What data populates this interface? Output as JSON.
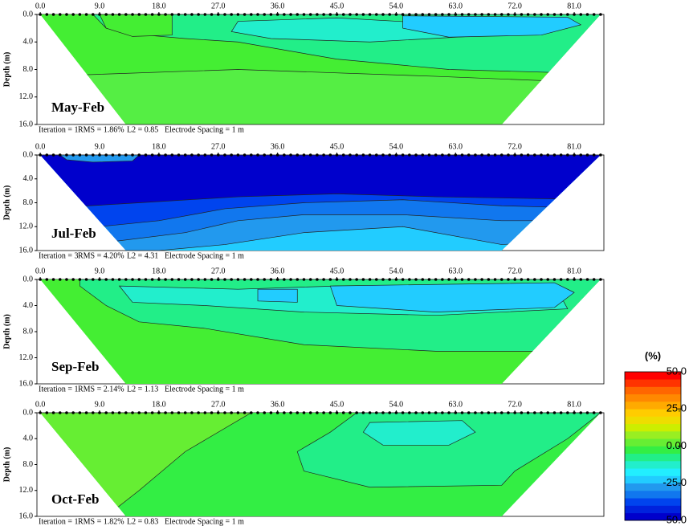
{
  "chart_data": [
    {
      "type": "contour",
      "title": "May-Feb",
      "ylabel": "Depth (m)",
      "xlim": [
        -0.5,
        85.5
      ],
      "ylim": [
        0,
        16
      ],
      "xticks": [
        {
          "value": 0,
          "label": "0.0"
        },
        {
          "value": 9,
          "label": "9.0"
        },
        {
          "value": 18,
          "label": "18.0"
        },
        {
          "value": 27,
          "label": "27.0"
        },
        {
          "value": 36,
          "label": "36.0"
        },
        {
          "value": 45,
          "label": "45.0"
        },
        {
          "value": 54,
          "label": "54.0"
        },
        {
          "value": 63,
          "label": "63.0"
        },
        {
          "value": 72,
          "label": "72.0"
        },
        {
          "value": 81,
          "label": "81.0"
        }
      ],
      "yticks": [
        {
          "value": 0,
          "label": "0.0"
        },
        {
          "value": 4,
          "label": "4.0"
        },
        {
          "value": 8,
          "label": "8.0"
        },
        {
          "value": 12,
          "label": "12.0"
        },
        {
          "value": 16,
          "label": "16.0"
        }
      ],
      "footer": [
        "Iteration = 1",
        "RMS = 1.86%",
        "L2 = 0.85",
        "Electrode Spacing = 1 m"
      ]
    },
    {
      "type": "contour",
      "title": "Jul-Feb",
      "ylabel": "Depth (m)",
      "xlim": [
        -0.5,
        85.5
      ],
      "ylim": [
        0,
        16
      ],
      "xticks": [
        {
          "value": 0,
          "label": "0.0"
        },
        {
          "value": 9,
          "label": "9.0"
        },
        {
          "value": 18,
          "label": "18.0"
        },
        {
          "value": 27,
          "label": "27.0"
        },
        {
          "value": 36,
          "label": "36.0"
        },
        {
          "value": 45,
          "label": "45.0"
        },
        {
          "value": 54,
          "label": "54.0"
        },
        {
          "value": 63,
          "label": "63.0"
        },
        {
          "value": 72,
          "label": "72.0"
        },
        {
          "value": 81,
          "label": "81.0"
        }
      ],
      "yticks": [
        {
          "value": 0,
          "label": "0.0"
        },
        {
          "value": 4,
          "label": "4.0"
        },
        {
          "value": 8,
          "label": "8.0"
        },
        {
          "value": 12,
          "label": "12.0"
        },
        {
          "value": 16,
          "label": "16.0"
        }
      ],
      "footer": [
        "Iteration = 3",
        "RMS = 4.20%",
        "L2 = 4.31",
        "Electrode Spacing = 1 m"
      ]
    },
    {
      "type": "contour",
      "title": "Sep-Feb",
      "ylabel": "Depth (m)",
      "xlim": [
        -0.5,
        85.5
      ],
      "ylim": [
        0,
        16
      ],
      "xticks": [
        {
          "value": 0,
          "label": "0.0"
        },
        {
          "value": 9,
          "label": "9.0"
        },
        {
          "value": 18,
          "label": "18.0"
        },
        {
          "value": 27,
          "label": "27.0"
        },
        {
          "value": 36,
          "label": "36.0"
        },
        {
          "value": 45,
          "label": "45.0"
        },
        {
          "value": 54,
          "label": "54.0"
        },
        {
          "value": 63,
          "label": "63.0"
        },
        {
          "value": 72,
          "label": "72.0"
        },
        {
          "value": 81,
          "label": "81.0"
        }
      ],
      "yticks": [
        {
          "value": 0,
          "label": "0.0"
        },
        {
          "value": 4,
          "label": "4.0"
        },
        {
          "value": 8,
          "label": "8.0"
        },
        {
          "value": 12,
          "label": "12.0"
        },
        {
          "value": 16,
          "label": "16.0"
        }
      ],
      "footer": [
        "Iteration = 1",
        "RMS = 2.14%",
        "L2 = 1.13",
        "Electrode Spacing = 1 m"
      ]
    },
    {
      "type": "contour",
      "title": "Oct-Feb",
      "ylabel": "Depth (m)",
      "xlim": [
        -0.5,
        85.5
      ],
      "ylim": [
        0,
        16
      ],
      "xticks": [
        {
          "value": 0,
          "label": "0.0"
        },
        {
          "value": 9,
          "label": "9.0"
        },
        {
          "value": 18,
          "label": "18.0"
        },
        {
          "value": 27,
          "label": "27.0"
        },
        {
          "value": 36,
          "label": "36.0"
        },
        {
          "value": 45,
          "label": "45.0"
        },
        {
          "value": 54,
          "label": "54.0"
        },
        {
          "value": 63,
          "label": "63.0"
        },
        {
          "value": 72,
          "label": "72.0"
        },
        {
          "value": 81,
          "label": "81.0"
        }
      ],
      "yticks": [
        {
          "value": 0,
          "label": "0.0"
        },
        {
          "value": 4,
          "label": "4.0"
        },
        {
          "value": 8,
          "label": "8.0"
        },
        {
          "value": 12,
          "label": "12.0"
        },
        {
          "value": 16,
          "label": "16.0"
        }
      ],
      "footer": [
        "Iteration = 1",
        "RMS = 1.82%",
        "L2 = 0.83",
        "Electrode Spacing = 1 m"
      ]
    }
  ],
  "colorbar": {
    "title": "(%)",
    "lim": [
      -50,
      50
    ],
    "ticks": [
      {
        "value": 50,
        "label": "50.0"
      },
      {
        "value": 25,
        "label": "25.0"
      },
      {
        "value": 0,
        "label": "0.00"
      },
      {
        "value": -25,
        "label": "-25.0"
      },
      {
        "value": -50,
        "label": "-50.0"
      }
    ],
    "colors": [
      "#0000cc",
      "#0022dd",
      "#0044ee",
      "#1177ee",
      "#2299ee",
      "#22ccff",
      "#22eeff",
      "#22eecc",
      "#22ee88",
      "#33ee44",
      "#66ee33",
      "#99ee22",
      "#ccee00",
      "#eedd00",
      "#ffcc00",
      "#ffaa00",
      "#ff8800",
      "#ff6600",
      "#ff3300",
      "#ff0000"
    ]
  }
}
